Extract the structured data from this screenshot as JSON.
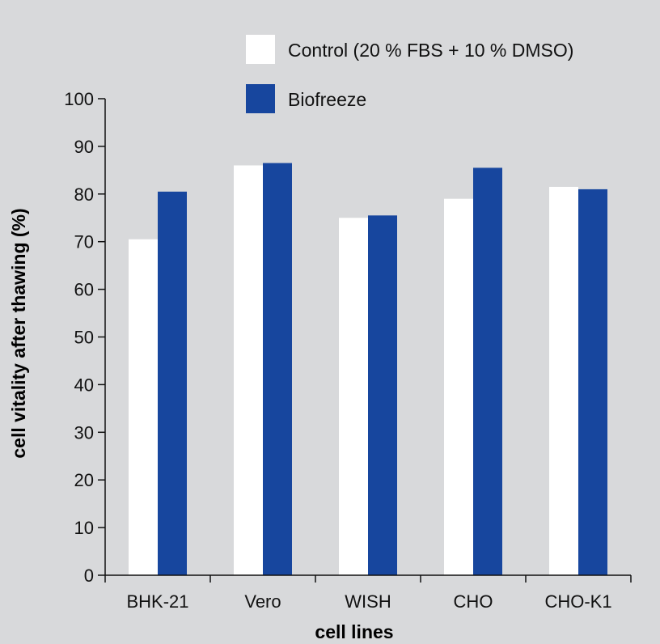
{
  "chart_data": {
    "type": "bar",
    "title": "",
    "xlabel": "cell lines",
    "ylabel": "cell vitality after thawing (%)",
    "ylim": [
      0,
      100
    ],
    "yticks": [
      0,
      10,
      20,
      30,
      40,
      50,
      60,
      70,
      80,
      90,
      100
    ],
    "grid": false,
    "legend_position": "top",
    "categories": [
      "BHK-21",
      "Vero",
      "WISH",
      "CHO",
      "CHO-K1"
    ],
    "series": [
      {
        "name": "Control (20 % FBS + 10 % DMSO)",
        "color": "#ffffff",
        "values": [
          70.5,
          86,
          75,
          79,
          81.5
        ]
      },
      {
        "name": "Biofreeze",
        "color": "#17469e",
        "values": [
          80.5,
          86.5,
          75.5,
          85.5,
          81
        ]
      }
    ]
  },
  "colors": {
    "background": "#d8d9db",
    "axis": "#111111",
    "text": "#111111"
  }
}
